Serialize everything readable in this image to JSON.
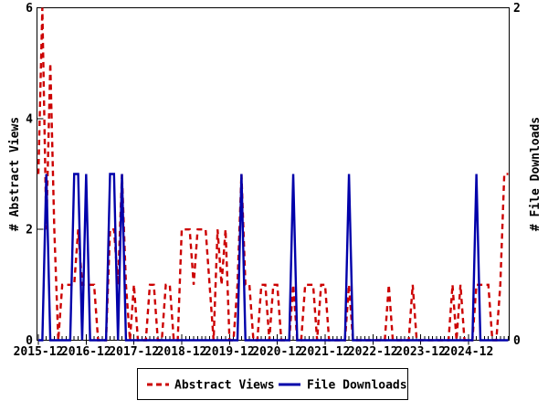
{
  "chart_data": {
    "type": "line",
    "title": "",
    "x_start": "2015-12",
    "x_end": "2025-10",
    "x_tick_labels": [
      "2015-12",
      "2016-12",
      "2017-12",
      "2018-12",
      "2019-12",
      "2020-12",
      "2021-12",
      "2022-12",
      "2023-12",
      "2024-12"
    ],
    "x_tick_month_indices": [
      0,
      12,
      24,
      36,
      48,
      60,
      72,
      84,
      96,
      108
    ],
    "months_total": 118,
    "grid": false,
    "left_axis": {
      "label": "# Abstract Views",
      "ticks": [
        0,
        2,
        4,
        6
      ],
      "range": [
        0,
        6
      ]
    },
    "right_axis": {
      "label": "# File Downloads",
      "ticks": [
        0,
        2
      ],
      "range": [
        0,
        2
      ]
    },
    "series": [
      {
        "name": "Abstract Views",
        "axis": "left",
        "style": "dashed",
        "color": "#cc0000",
        "values": [
          3,
          6,
          2,
          5,
          2,
          0,
          1,
          1,
          1,
          1,
          2,
          1,
          1,
          1,
          1,
          0,
          0,
          0,
          2,
          2,
          1,
          3,
          1,
          0,
          1,
          0,
          0,
          0,
          1,
          1,
          0,
          0,
          1,
          1,
          0,
          0,
          2,
          2,
          2,
          1,
          2,
          2,
          2,
          1,
          0,
          2,
          1,
          2,
          0,
          0,
          1,
          3,
          1,
          1,
          0,
          0,
          1,
          1,
          0,
          1,
          1,
          0,
          0,
          0,
          1,
          0,
          0,
          1,
          1,
          1,
          0,
          1,
          1,
          0,
          0,
          0,
          0,
          0,
          1,
          0,
          0,
          0,
          0,
          0,
          0,
          0,
          0,
          0,
          1,
          0,
          0,
          0,
          0,
          0,
          1,
          0,
          0,
          0,
          0,
          0,
          0,
          0,
          0,
          0,
          1,
          0,
          1,
          0,
          0,
          0,
          1,
          1,
          1,
          1,
          0,
          0,
          1,
          3,
          3
        ]
      },
      {
        "name": "File Downloads",
        "axis": "right",
        "style": "solid",
        "color": "#0000aa",
        "values": [
          0,
          0,
          1,
          0,
          0,
          0,
          0,
          0,
          0,
          1,
          1,
          0,
          1,
          0,
          0,
          0,
          0,
          0,
          1,
          1,
          0,
          1,
          0,
          0,
          0,
          0,
          0,
          0,
          0,
          0,
          0,
          0,
          0,
          0,
          0,
          0,
          0,
          0,
          0,
          0,
          0,
          0,
          0,
          0,
          0,
          0,
          0,
          0,
          0,
          0,
          0,
          1,
          0,
          0,
          0,
          0,
          0,
          0,
          0,
          0,
          0,
          0,
          0,
          0,
          1,
          0,
          0,
          0,
          0,
          0,
          0,
          0,
          0,
          0,
          0,
          0,
          0,
          0,
          1,
          0,
          0,
          0,
          0,
          0,
          0,
          0,
          0,
          0,
          0,
          0,
          0,
          0,
          0,
          0,
          0,
          0,
          0,
          0,
          0,
          0,
          0,
          0,
          0,
          0,
          0,
          0,
          0,
          0,
          0,
          0,
          1,
          0,
          0,
          0,
          0,
          0,
          0,
          0,
          0
        ]
      }
    ],
    "legend": {
      "position": "bottom-center",
      "items": [
        {
          "label": "Abstract Views",
          "color": "#cc0000",
          "style": "dashed"
        },
        {
          "label": "File Downloads",
          "color": "#0000aa",
          "style": "solid"
        }
      ]
    }
  },
  "colors": {
    "abstract_views": "#cc0000",
    "file_downloads": "#0000aa",
    "axis": "#000000",
    "background": "#ffffff"
  }
}
